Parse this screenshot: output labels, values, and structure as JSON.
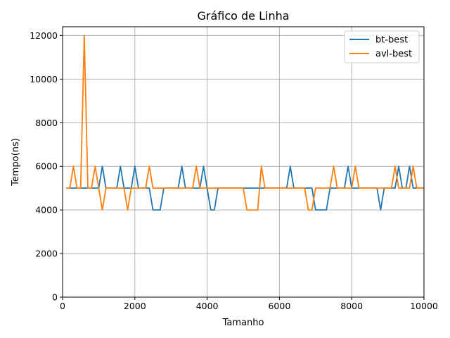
{
  "chart_data": {
    "type": "line",
    "title": "Gráfico de Linha",
    "xlabel": "Tamanho",
    "ylabel": "Tempo(ns)",
    "xlim": [
      0,
      10000
    ],
    "ylim": [
      0,
      12400
    ],
    "xticks": [
      0,
      2000,
      4000,
      6000,
      8000,
      10000
    ],
    "yticks": [
      0,
      2000,
      4000,
      6000,
      8000,
      10000,
      12000
    ],
    "grid": true,
    "legend_position": "top-right",
    "x": [
      100,
      200,
      300,
      400,
      500,
      600,
      700,
      800,
      900,
      1000,
      1100,
      1200,
      1300,
      1400,
      1500,
      1600,
      1700,
      1800,
      1900,
      2000,
      2100,
      2200,
      2300,
      2400,
      2500,
      2600,
      2700,
      2800,
      2900,
      3000,
      3100,
      3200,
      3300,
      3400,
      3500,
      3600,
      3700,
      3800,
      3900,
      4000,
      4100,
      4200,
      4300,
      4400,
      4500,
      4600,
      4700,
      4800,
      4900,
      5000,
      5100,
      5200,
      5300,
      5400,
      5500,
      5600,
      5700,
      5800,
      5900,
      6000,
      6100,
      6200,
      6300,
      6400,
      6500,
      6600,
      6700,
      6800,
      6900,
      7000,
      7100,
      7200,
      7300,
      7400,
      7500,
      7600,
      7700,
      7800,
      7900,
      8000,
      8100,
      8200,
      8300,
      8400,
      8500,
      8600,
      8700,
      8800,
      8900,
      9000,
      9100,
      9200,
      9300,
      9400,
      9500,
      9600,
      9700,
      9800,
      9900,
      10000
    ],
    "series": [
      {
        "name": "bt-best",
        "color": "#1f77b4",
        "values": [
          5000,
          5000,
          5000,
          5000,
          5000,
          5000,
          5000,
          5000,
          5000,
          5000,
          6000,
          5000,
          5000,
          5000,
          5000,
          6000,
          5000,
          5000,
          5000,
          6000,
          5000,
          5000,
          5000,
          5000,
          4000,
          4000,
          4000,
          5000,
          5000,
          5000,
          5000,
          5000,
          6000,
          5000,
          5000,
          5000,
          5000,
          5000,
          6000,
          5000,
          4000,
          4000,
          5000,
          5000,
          5000,
          5000,
          5000,
          5000,
          5000,
          5000,
          5000,
          5000,
          5000,
          5000,
          5000,
          5000,
          5000,
          5000,
          5000,
          5000,
          5000,
          5000,
          6000,
          5000,
          5000,
          5000,
          5000,
          5000,
          5000,
          4000,
          4000,
          4000,
          4000,
          5000,
          5000,
          5000,
          5000,
          5000,
          6000,
          5000,
          5000,
          5000,
          5000,
          5000,
          5000,
          5000,
          5000,
          4000,
          5000,
          5000,
          5000,
          5000,
          6000,
          5000,
          5000,
          6000,
          5000,
          5000,
          5000,
          5000
        ]
      },
      {
        "name": "avl-best",
        "color": "#ff7f0e",
        "values": [
          5000,
          5000,
          6000,
          5000,
          5000,
          12000,
          5000,
          5000,
          6000,
          5000,
          4000,
          5000,
          5000,
          5000,
          5000,
          5000,
          5000,
          4000,
          5000,
          5000,
          5000,
          5000,
          5000,
          6000,
          5000,
          5000,
          5000,
          5000,
          5000,
          5000,
          5000,
          5000,
          5000,
          5000,
          5000,
          5000,
          6000,
          5000,
          5000,
          5000,
          5000,
          5000,
          5000,
          5000,
          5000,
          5000,
          5000,
          5000,
          5000,
          5000,
          4000,
          4000,
          4000,
          4000,
          6000,
          5000,
          5000,
          5000,
          5000,
          5000,
          5000,
          5000,
          5000,
          5000,
          5000,
          5000,
          5000,
          4000,
          4000,
          5000,
          5000,
          5000,
          5000,
          5000,
          6000,
          5000,
          5000,
          5000,
          5000,
          5000,
          6000,
          5000,
          5000,
          5000,
          5000,
          5000,
          5000,
          5000,
          5000,
          5000,
          5000,
          6000,
          5000,
          5000,
          5000,
          5000,
          6000,
          5000,
          5000,
          5000
        ]
      }
    ]
  }
}
